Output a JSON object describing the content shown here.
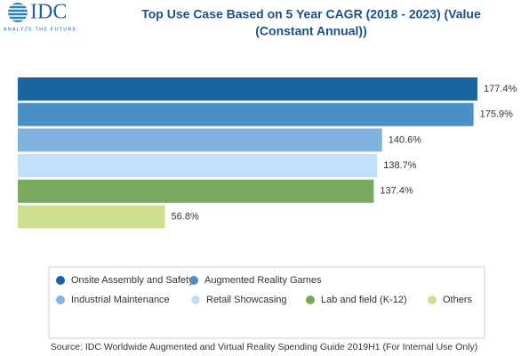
{
  "logo": {
    "name": "IDC",
    "tagline": "ANALYZE THE FUTURE"
  },
  "chart_data": {
    "type": "bar",
    "orientation": "horizontal",
    "title": [
      "Top Use Case Based on 5 Year CAGR  (2018 - 2023) (Value",
      "(Constant Annual))"
    ],
    "categories": [
      "Onsite Assembly and Safety",
      "Augmented Reality Games",
      "Industrial Maintenance",
      "Retail Showcasing",
      "Lab and field (K-12)",
      "Others"
    ],
    "colors": [
      "#1b64a0",
      "#4b8fc5",
      "#80b3dd",
      "#bfe0f8",
      "#77aa5c",
      "#cde08d"
    ],
    "values": [
      177.4,
      175.9,
      140.6,
      138.7,
      137.4,
      56.8
    ],
    "value_labels": [
      "177.4%",
      "175.9%",
      "140.6%",
      "138.7%",
      "137.4%",
      "56.8%"
    ],
    "source": "Source: IDC Worldwide Augmented and Virtual Reality Spending Guide 2019H1 (For Internal Use Only)"
  }
}
